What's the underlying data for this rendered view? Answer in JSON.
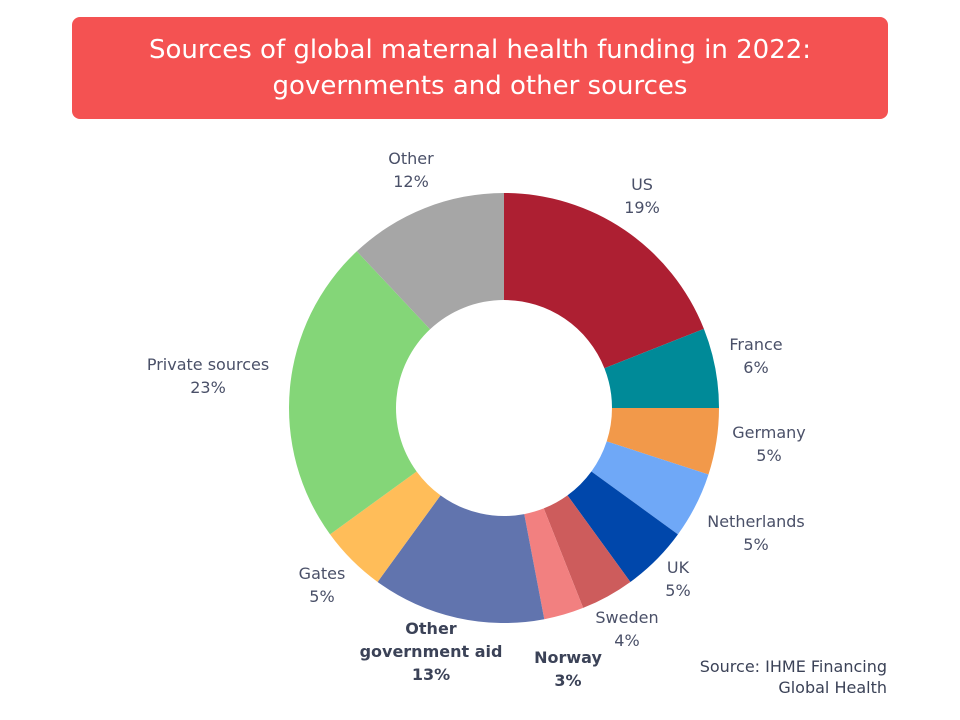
{
  "title": {
    "line1": "Sources of global maternal health funding in 2022:",
    "line2": "governments and other sources"
  },
  "source": {
    "line1": "Source: IHME Financing",
    "line2": "Global Health"
  },
  "chart_data": {
    "type": "pie",
    "donut": true,
    "unit": "%",
    "slices": [
      {
        "label": "US",
        "value": 19,
        "color": "#ad1f32",
        "bold": false
      },
      {
        "label": "France",
        "value": 6,
        "color": "#008a98",
        "bold": false
      },
      {
        "label": "Germany",
        "value": 5,
        "color": "#f2994a",
        "bold": false
      },
      {
        "label": "Netherlands",
        "value": 5,
        "color": "#6fa8f7",
        "bold": false
      },
      {
        "label": "UK",
        "value": 5,
        "color": "#0047ab",
        "bold": false
      },
      {
        "label": "Sweden",
        "value": 4,
        "color": "#cd5c5c",
        "bold": false
      },
      {
        "label": "Norway",
        "value": 3,
        "color": "#f28080",
        "bold": true
      },
      {
        "label": "Other government aid",
        "value": 13,
        "color": "#6174ae",
        "bold": true
      },
      {
        "label": "Gates",
        "value": 5,
        "color": "#ffbd59",
        "bold": false
      },
      {
        "label": "Private sources",
        "value": 23,
        "color": "#84d678",
        "bold": false
      },
      {
        "label": "Other",
        "value": 12,
        "color": "#a6a6a6",
        "bold": false
      }
    ]
  }
}
